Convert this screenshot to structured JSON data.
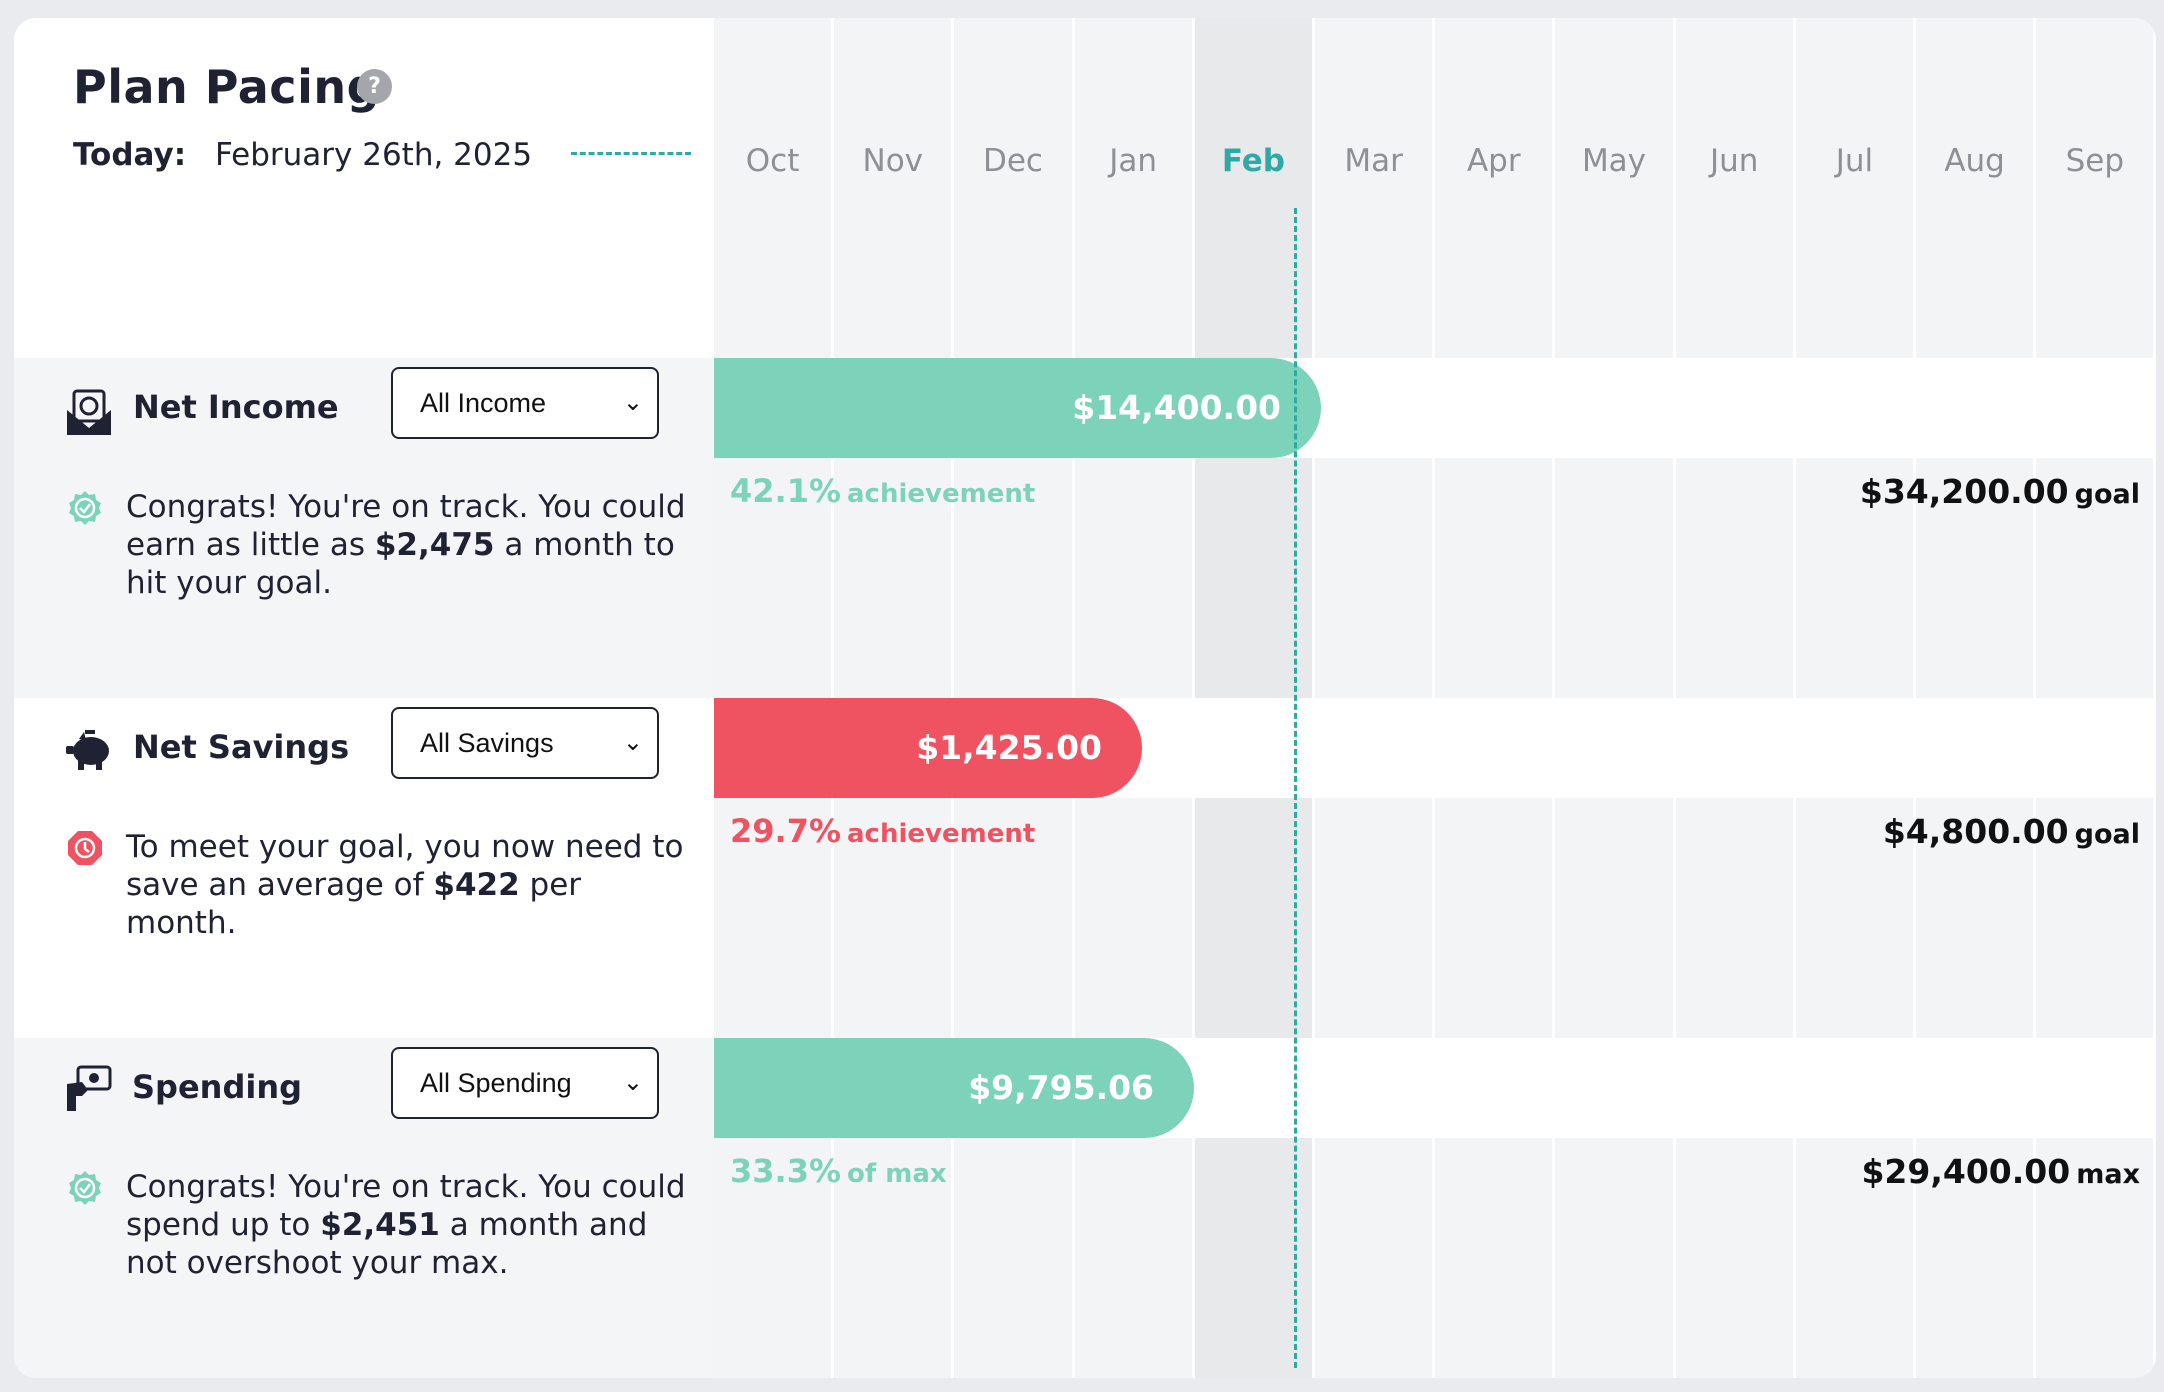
{
  "header": {
    "title": "Plan Pacing",
    "help_icon": "?",
    "today_label": "Today:",
    "today_date": "February 26th, 2025"
  },
  "months": [
    "Oct",
    "Nov",
    "Dec",
    "Jan",
    "Feb",
    "Mar",
    "Apr",
    "May",
    "Jun",
    "Jul",
    "Aug",
    "Sep"
  ],
  "current_month": "Feb",
  "colors": {
    "teal": "#7dd3ba",
    "red": "#ef5260",
    "today_line": "#2fa9a5"
  },
  "sections": {
    "income": {
      "title": "Net Income",
      "select_value": "All Income",
      "bar_value": "$14,400.00",
      "progress_fraction": 0.421,
      "pct": "42.1%",
      "pct_suffix": "achievement",
      "target": "$34,200.00",
      "target_suffix": "goal",
      "status": "on-track",
      "message_pre": "Congrats! You're on track. You could earn as little as ",
      "message_bold": "$2,475",
      "message_post": " a month to hit your goal."
    },
    "savings": {
      "title": "Net Savings",
      "select_value": "All Savings",
      "bar_value": "$1,425.00",
      "progress_fraction": 0.297,
      "pct": "29.7%",
      "pct_suffix": "achievement",
      "target": "$4,800.00",
      "target_suffix": "goal",
      "status": "behind",
      "message_pre": "To meet your goal, you now need to save an average of ",
      "message_bold": "$422",
      "message_post": " per month."
    },
    "spending": {
      "title": "Spending",
      "select_value": "All Spending",
      "bar_value": "$9,795.06",
      "progress_fraction": 0.333,
      "pct": "33.3%",
      "pct_suffix": "of max",
      "target": "$29,400.00",
      "target_suffix": "max",
      "status": "on-track",
      "message_pre": "Congrats! You're on track. You could spend up to ",
      "message_bold": "$2,451",
      "message_post": " a month and not overshoot your max."
    }
  }
}
